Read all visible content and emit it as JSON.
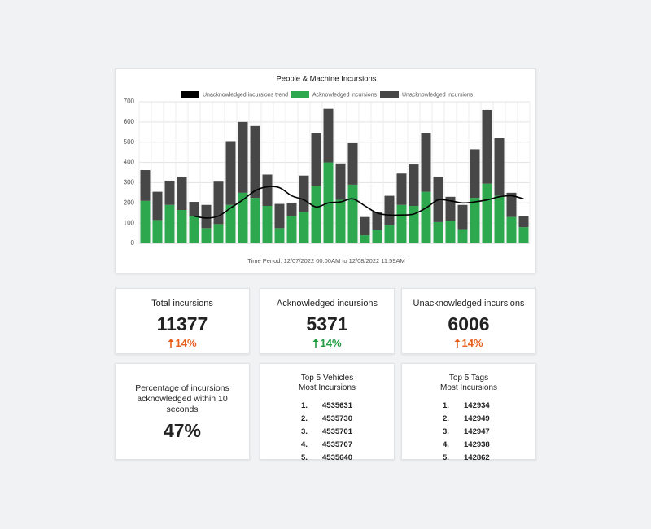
{
  "chart_data": {
    "type": "bar",
    "stacked": true,
    "title": "People & Machine Incursions",
    "x_label": "Time Period: 12/07/2022 00:00AM  to  12/08/2022 11:59AM",
    "categories": [
      null,
      null,
      null,
      null,
      null,
      null,
      null,
      null,
      null,
      null,
      null,
      null,
      null,
      null,
      null,
      null,
      null,
      null,
      null,
      null,
      null,
      null,
      null,
      null,
      null,
      null,
      null,
      null,
      null,
      null,
      null,
      null
    ],
    "series": [
      {
        "name": "Unacknowledged incursions trend",
        "type": "line",
        "color": "#000000",
        "values": [
          null,
          null,
          null,
          null,
          135,
          125,
          135,
          175,
          215,
          260,
          280,
          275,
          235,
          215,
          180,
          200,
          205,
          220,
          185,
          150,
          140,
          140,
          145,
          175,
          215,
          210,
          200,
          205,
          215,
          230,
          235,
          220
        ]
      },
      {
        "name": "Acknowledged incursions",
        "type": "bar",
        "color": "#2ea84f",
        "values": [
          210,
          115,
          190,
          165,
          135,
          75,
          95,
          190,
          250,
          225,
          185,
          75,
          135,
          155,
          285,
          400,
          215,
          290,
          40,
          65,
          90,
          190,
          185,
          255,
          105,
          110,
          70,
          225,
          295,
          235,
          130,
          80
        ]
      },
      {
        "name": "Unacknowledged incursions",
        "type": "bar",
        "color": "#474747",
        "values": [
          152,
          140,
          120,
          165,
          70,
          115,
          210,
          315,
          350,
          355,
          155,
          120,
          65,
          180,
          260,
          265,
          180,
          205,
          90,
          90,
          145,
          155,
          205,
          290,
          225,
          120,
          120,
          240,
          365,
          285,
          120,
          55
        ]
      }
    ],
    "ylim": [
      0,
      700
    ],
    "yticks": [
      0,
      100,
      200,
      300,
      400,
      500,
      600,
      700
    ],
    "grid": true,
    "legend": "top"
  },
  "cards": [
    {
      "title": "Total incursions",
      "value": "11377",
      "change": "14%",
      "color": "#e8601c"
    },
    {
      "title": "Acknowledged incursions",
      "value": "5371",
      "change": "14%",
      "color": "#1f9a3f"
    },
    {
      "title": "Unacknowledged incursions",
      "value": "6006",
      "change": "14%",
      "color": "#e8601c"
    }
  ],
  "percentage_card": {
    "title": "Percentage of incursions acknowledged within 10 seconds",
    "value": "47%"
  },
  "lists": [
    {
      "title": "Top 5 Vehicles",
      "subtitle": "Most Incursions",
      "items": [
        {
          "rank": "1.",
          "id": "4535631"
        },
        {
          "rank": "2.",
          "id": "4535730"
        },
        {
          "rank": "3.",
          "id": "4535701"
        },
        {
          "rank": "4.",
          "id": "4535707"
        },
        {
          "rank": "5.",
          "id": "4535640"
        }
      ]
    },
    {
      "title": "Top 5 Tags",
      "subtitle": "Most Incursions",
      "items": [
        {
          "rank": "1.",
          "id": "142934"
        },
        {
          "rank": "2.",
          "id": "142949"
        },
        {
          "rank": "3.",
          "id": "142947"
        },
        {
          "rank": "4.",
          "id": "142938"
        },
        {
          "rank": "5.",
          "id": "142862"
        }
      ]
    }
  ]
}
